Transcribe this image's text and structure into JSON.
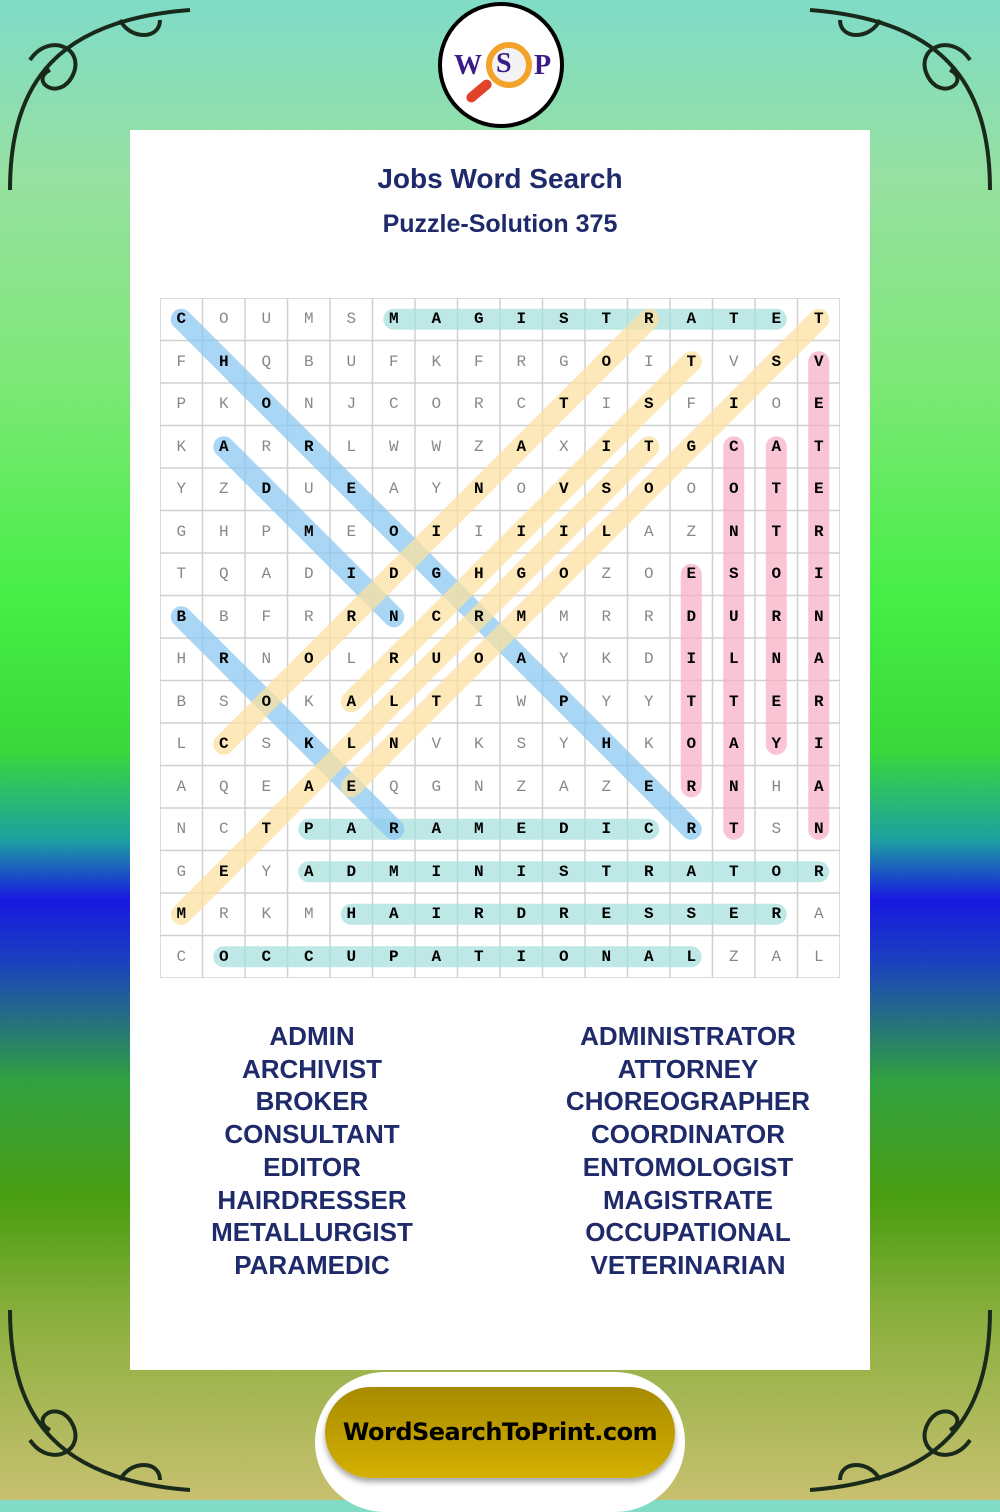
{
  "logo": {
    "letters": [
      "W",
      "S",
      "P"
    ]
  },
  "header": {
    "title": "Jobs Word Search",
    "subtitle": "Puzzle-Solution 375"
  },
  "grid": [
    "COUMSMAGISTRATET",
    "FHQBUFKFRGOITVSV",
    "PKONJCORCTISFIOE",
    "KARRLWWZAXITGCAT",
    "YZDUEAYNOVSOOOTE",
    "GHPMEOIIIILAZNTR",
    "TQADIDGHGOZOESOI",
    "BBFRRNCRMMRRDURN",
    "HRNOLRUOAYKDILNA",
    "BSOKALTIWPYYTTER",
    "LCSKLNVKSYHKOAYI",
    "AQEAEQGNZAZERNHA",
    "NCTPARAMEDICRTSN",
    "GEYADMINISTRATOR",
    "MRKMHAIRDRESSERA",
    "COCCUPATIONALZAL"
  ],
  "colors": {
    "teal": "#a8e0de",
    "blue": "#8cc8f0",
    "yellow": "#fbe0a0",
    "pink": "#f7b0c4",
    "title": "#1f2a6b"
  },
  "solutions": [
    {
      "word": "MAGISTRATE",
      "start": [
        0,
        5
      ],
      "end": [
        0,
        14
      ],
      "color": "teal"
    },
    {
      "word": "PARAMEDIC",
      "start": [
        12,
        3
      ],
      "end": [
        12,
        11
      ],
      "color": "teal"
    },
    {
      "word": "ADMINISTRATOR",
      "start": [
        13,
        3
      ],
      "end": [
        13,
        15
      ],
      "color": "teal"
    },
    {
      "word": "HAIRDRESSER",
      "start": [
        14,
        4
      ],
      "end": [
        14,
        14
      ],
      "color": "teal"
    },
    {
      "word": "OCCUPATIONAL",
      "start": [
        15,
        1
      ],
      "end": [
        15,
        12
      ],
      "color": "teal"
    },
    {
      "word": "CHOREOGRAPHER",
      "start": [
        0,
        0
      ],
      "end": [
        12,
        12
      ],
      "color": "blue"
    },
    {
      "word": "ADMIN",
      "start": [
        3,
        1
      ],
      "end": [
        7,
        5
      ],
      "color": "blue"
    },
    {
      "word": "BROKER",
      "start": [
        7,
        0
      ],
      "end": [
        12,
        5
      ],
      "color": "blue"
    },
    {
      "word": "COORDINATOR",
      "start": [
        10,
        1
      ],
      "end": [
        0,
        11
      ],
      "color": "yellow"
    },
    {
      "word": "METALLURGIST",
      "start": [
        14,
        0
      ],
      "end": [
        3,
        11
      ],
      "color": "yellow"
    },
    {
      "word": "ENTOMOLOGIST",
      "start": [
        11,
        4
      ],
      "end": [
        0,
        15
      ],
      "color": "yellow"
    },
    {
      "word": "ARCHIVIST",
      "start": [
        9,
        4
      ],
      "end": [
        1,
        12
      ],
      "color": "yellow"
    },
    {
      "word": "VETERINARIAN",
      "start": [
        1,
        15
      ],
      "end": [
        12,
        15
      ],
      "color": "pink"
    },
    {
      "word": "CONSULTANT",
      "start": [
        3,
        13
      ],
      "end": [
        12,
        13
      ],
      "color": "pink"
    },
    {
      "word": "ATTORNEY",
      "start": [
        3,
        14
      ],
      "end": [
        10,
        14
      ],
      "color": "pink"
    },
    {
      "word": "EDITOR",
      "start": [
        6,
        12
      ],
      "end": [
        11,
        12
      ],
      "color": "pink"
    }
  ],
  "word_list": {
    "left": [
      "ADMIN",
      "ARCHIVIST",
      "BROKER",
      "CONSULTANT",
      "EDITOR",
      "HAIRDRESSER",
      "METALLURGIST",
      "PARAMEDIC"
    ],
    "right": [
      "ADMINISTRATOR",
      "ATTORNEY",
      "CHOREOGRAPHER",
      "COORDINATOR",
      "ENTOMOLOGIST",
      "MAGISTRATE",
      "OCCUPATIONAL",
      "VETERINARIAN"
    ]
  },
  "footer": {
    "site": "WordSearchToPrint.com"
  }
}
